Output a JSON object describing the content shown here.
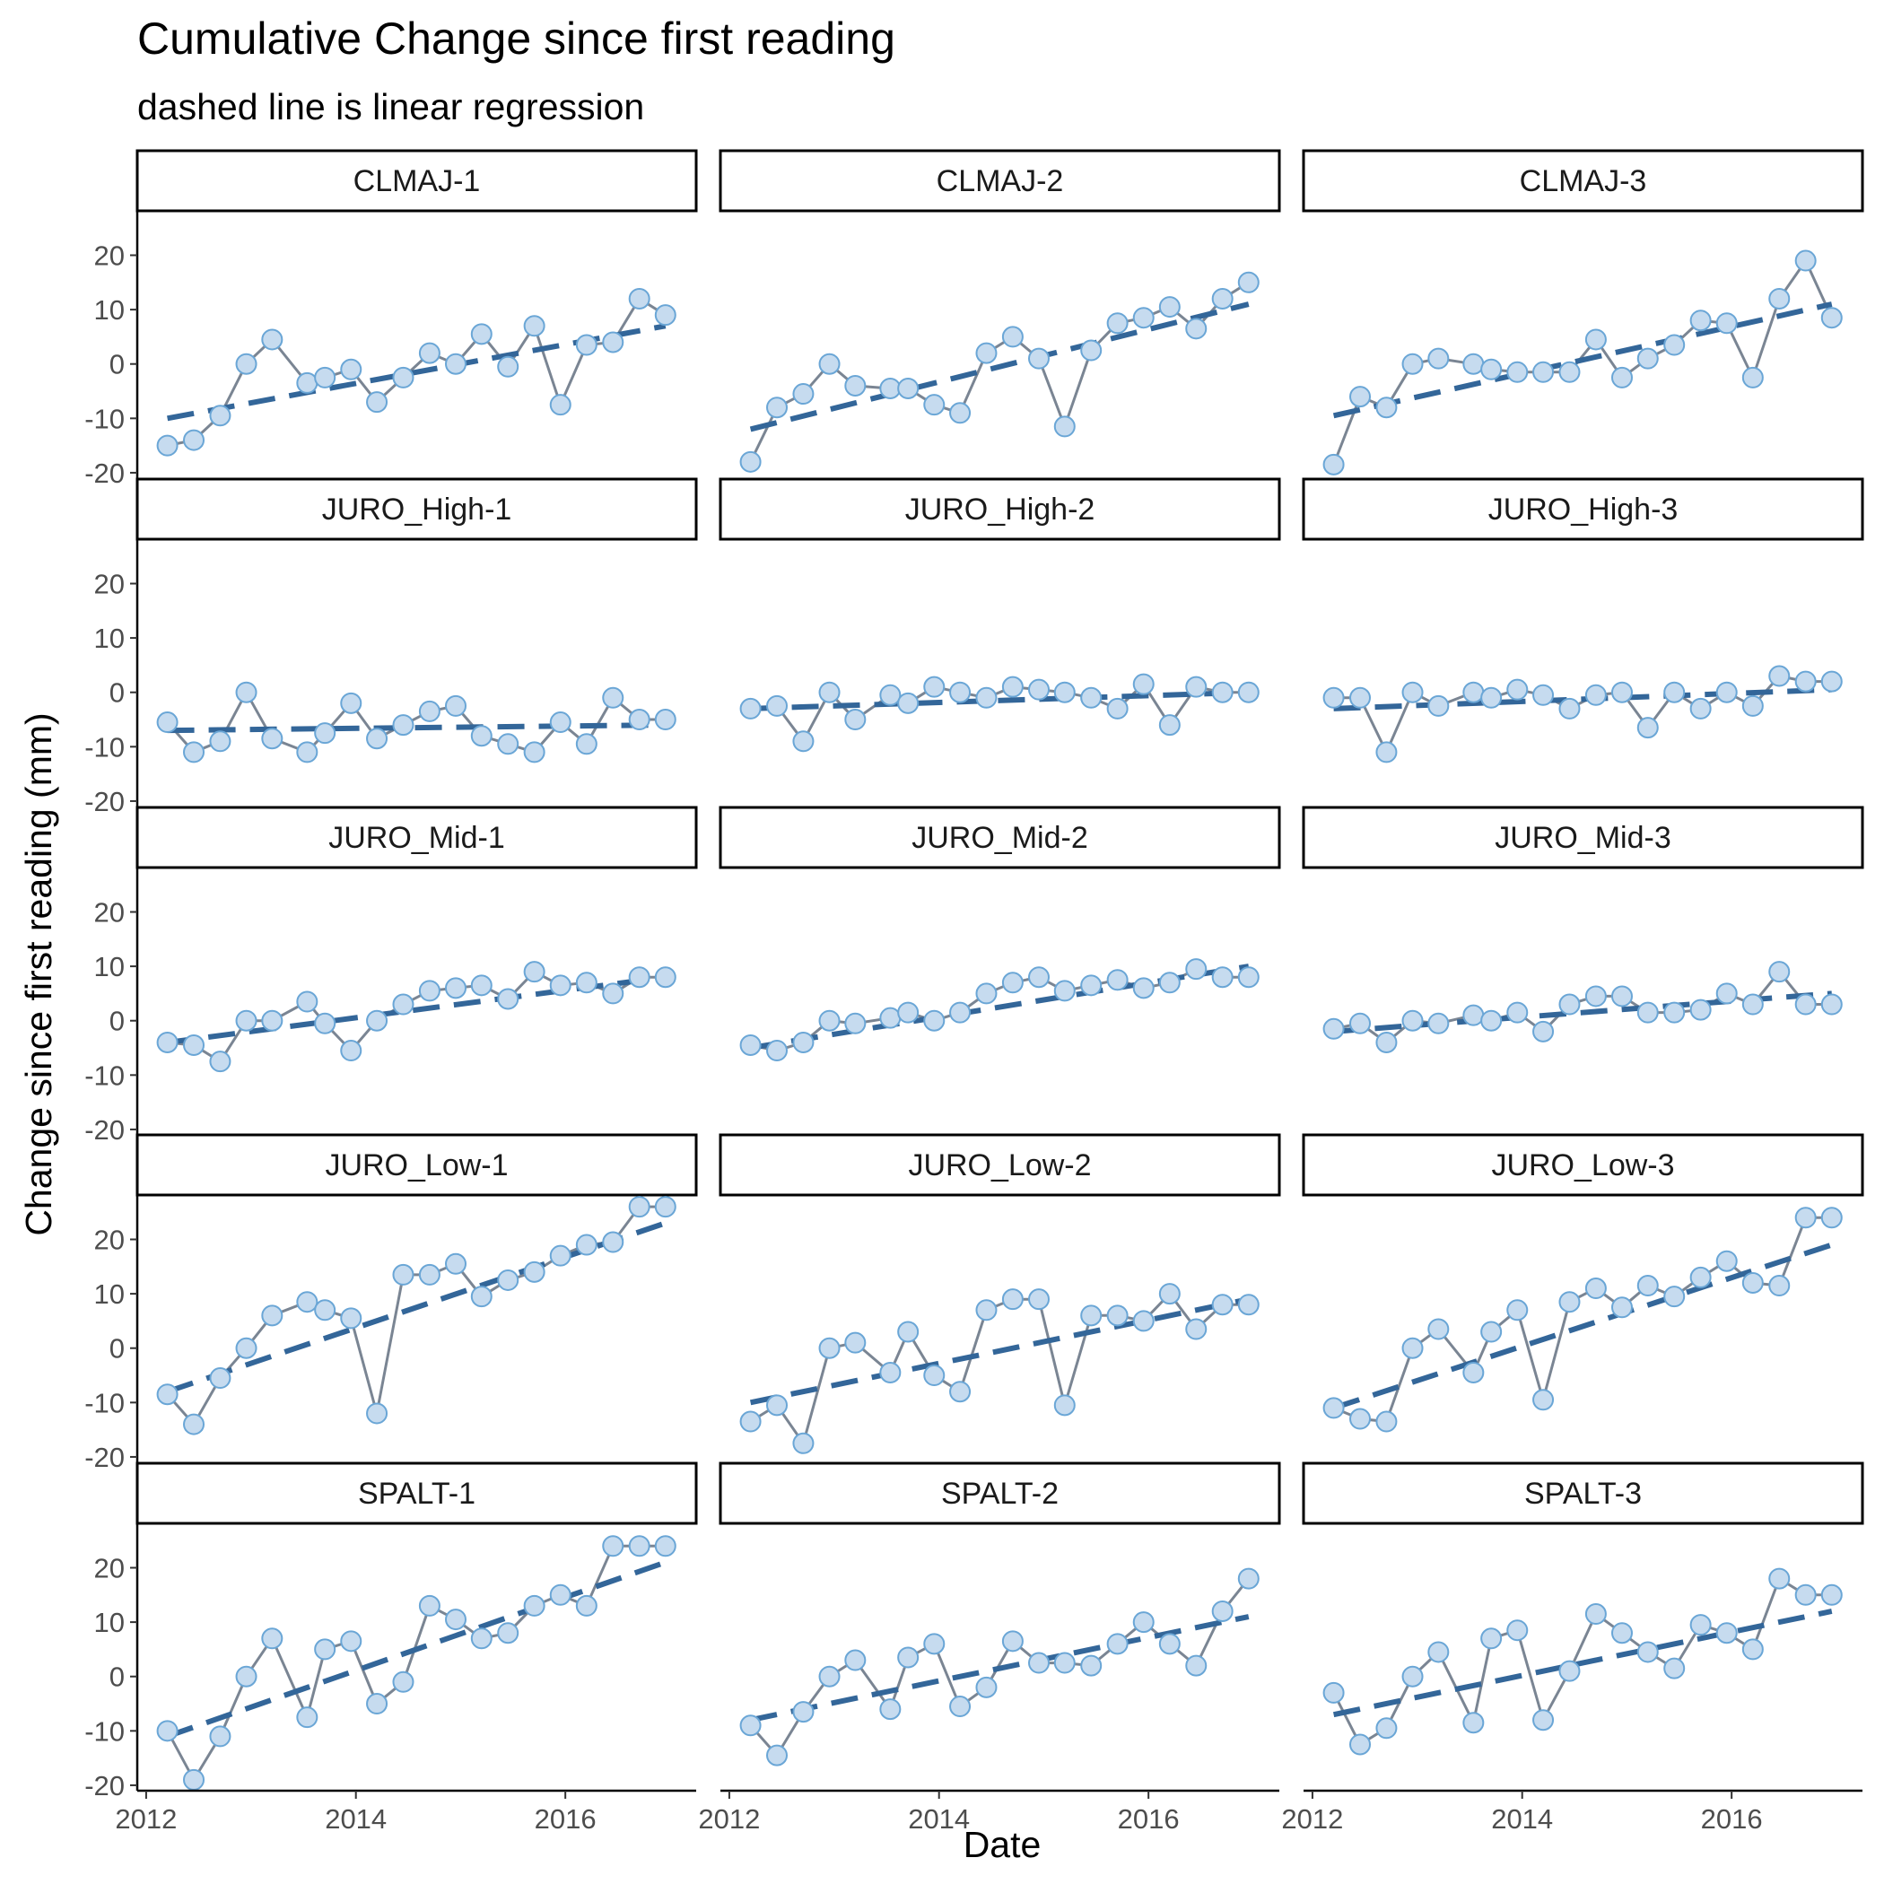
{
  "chart_data": {
    "type": "line",
    "title": "Cumulative Change since first reading",
    "subtitle": "dashed line is linear regression",
    "xlabel": "Date",
    "ylabel": "Change since first reading (mm)",
    "xlim": [
      "2011-12-01",
      "2017-04-01"
    ],
    "ylim": [
      -21,
      28
    ],
    "x_ticks": [
      "2012",
      "2014",
      "2016"
    ],
    "y_ticks": [
      -20,
      -10,
      0,
      10,
      20
    ],
    "grid": false,
    "layout": "facet grid, 5 rows by 3 columns",
    "colors": {
      "point_fill": "#c6dbef",
      "point_outline": "#6aa6d6",
      "line": "#7a8593",
      "regression": "#336699"
    },
    "dates": [
      "2012-03",
      "2012-06",
      "2012-09",
      "2012-12",
      "2013-03",
      "2013-07",
      "2013-09",
      "2013-12",
      "2014-03",
      "2014-06",
      "2014-09",
      "2014-12",
      "2015-03",
      "2015-06",
      "2015-09",
      "2015-12",
      "2016-03",
      "2016-06",
      "2016-09",
      "2016-12"
    ],
    "panels": [
      {
        "name": "CLMAJ-1",
        "values": [
          -15,
          -14,
          -9.5,
          0,
          4.5,
          -3.5,
          -2.5,
          -1,
          -7,
          -2.5,
          2,
          0,
          5.5,
          -0.5,
          7,
          -7.5,
          3.5,
          4,
          12,
          9
        ],
        "fit": [
          -10,
          7
        ]
      },
      {
        "name": "CLMAJ-2",
        "values": [
          -18,
          -8,
          -5.5,
          0,
          -4,
          -4.5,
          -4.5,
          -7.5,
          -9,
          2,
          5,
          1,
          -11.5,
          2.5,
          7.5,
          8.5,
          10.5,
          6.5,
          12,
          15
        ],
        "fit": [
          -12,
          11
        ]
      },
      {
        "name": "CLMAJ-3",
        "values": [
          -18.5,
          -6,
          -8,
          0,
          1,
          0,
          -1,
          -1.5,
          -1.5,
          -1.5,
          4.5,
          -2.5,
          1,
          3.5,
          8,
          7.5,
          -2.5,
          12,
          19,
          8.5
        ],
        "fit": [
          -9.5,
          11
        ]
      },
      {
        "name": "JURO_High-1",
        "values": [
          -5.5,
          -11,
          -9,
          0,
          -8.5,
          -11,
          -7.5,
          -2,
          -8.5,
          -6,
          -3.5,
          -2.5,
          -8,
          -9.5,
          -11,
          -5.5,
          -9.5,
          -1,
          -5,
          -5
        ],
        "fit": [
          -7,
          -6
        ]
      },
      {
        "name": "JURO_High-2",
        "values": [
          -3,
          -2.5,
          -9,
          0,
          -5,
          -0.5,
          -2,
          1,
          0,
          -1,
          1,
          0.5,
          0,
          -1,
          -3,
          1.5,
          -6,
          1,
          0,
          0
        ],
        "fit": [
          -3,
          0
        ]
      },
      {
        "name": "JURO_High-3",
        "values": [
          -1,
          -1,
          -11,
          0,
          -2.5,
          0,
          -1,
          0.5,
          -0.5,
          -3,
          -0.5,
          0,
          -6.5,
          0,
          -3,
          0,
          -2.5,
          3,
          2,
          2
        ],
        "fit": [
          -3,
          0.5
        ]
      },
      {
        "name": "JURO_Mid-1",
        "values": [
          -4,
          -4.5,
          -7.5,
          0,
          0,
          3.5,
          -0.5,
          -5.5,
          0,
          3,
          5.5,
          6,
          6.5,
          4,
          9,
          6.5,
          7,
          5,
          8,
          8
        ],
        "fit": [
          -4,
          8
        ]
      },
      {
        "name": "JURO_Mid-2",
        "values": [
          -4.5,
          -5.5,
          -4,
          0,
          -0.5,
          0.5,
          1.5,
          0,
          1.5,
          5,
          7,
          8,
          5.5,
          6.5,
          7.5,
          6,
          7,
          9.5,
          8,
          8
        ],
        "fit": [
          -5,
          10
        ]
      },
      {
        "name": "JURO_Mid-3",
        "values": [
          -1.5,
          -0.5,
          -4,
          0,
          -0.5,
          1,
          0,
          1.5,
          -2,
          3,
          4.5,
          4.5,
          1.5,
          1.5,
          2,
          5,
          3,
          9,
          3,
          3
        ],
        "fit": [
          -2,
          5
        ]
      },
      {
        "name": "JURO_Low-1",
        "values": [
          -8.5,
          -14,
          -5.5,
          0,
          6,
          8.5,
          7,
          5.5,
          -12,
          13.5,
          13.5,
          15.5,
          9.5,
          12.5,
          14,
          17,
          19,
          19.5,
          26,
          26
        ],
        "fit": [
          -8,
          23
        ]
      },
      {
        "name": "JURO_Low-2",
        "values": [
          -13.5,
          -10.5,
          -17.5,
          0,
          1,
          -4.5,
          3,
          -5,
          -8,
          7,
          9,
          9,
          -10.5,
          6,
          6,
          5,
          10,
          3.5,
          8,
          8
        ],
        "fit": [
          -10,
          9
        ]
      },
      {
        "name": "JURO_Low-3",
        "values": [
          -11,
          -13,
          -13.5,
          0,
          3.5,
          -4.5,
          3,
          7,
          -9.5,
          8.5,
          11,
          7.5,
          11.5,
          9.5,
          13,
          16,
          12,
          11.5,
          24,
          24
        ],
        "fit": [
          -11,
          19
        ]
      },
      {
        "name": "SPALT-1",
        "values": [
          -10,
          -19,
          -11,
          0,
          7,
          -7.5,
          5,
          6.5,
          -5,
          -1,
          13,
          10.5,
          7,
          8,
          13,
          15,
          13,
          24,
          24,
          24
        ],
        "fit": [
          -11,
          21
        ]
      },
      {
        "name": "SPALT-2",
        "values": [
          -9,
          -14.5,
          -6.5,
          0,
          3,
          -6,
          3.5,
          6,
          -5.5,
          -2,
          6.5,
          2.5,
          2.5,
          2,
          6,
          10,
          6,
          2,
          12,
          18
        ],
        "fit": [
          -8,
          11
        ]
      },
      {
        "name": "SPALT-3",
        "values": [
          -3,
          -12.5,
          -9.5,
          0,
          4.5,
          -8.5,
          7,
          8.5,
          -8,
          1,
          11.5,
          8,
          4.5,
          1.5,
          9.5,
          8,
          5,
          18,
          15,
          15
        ],
        "fit": [
          -7,
          12
        ]
      }
    ]
  }
}
